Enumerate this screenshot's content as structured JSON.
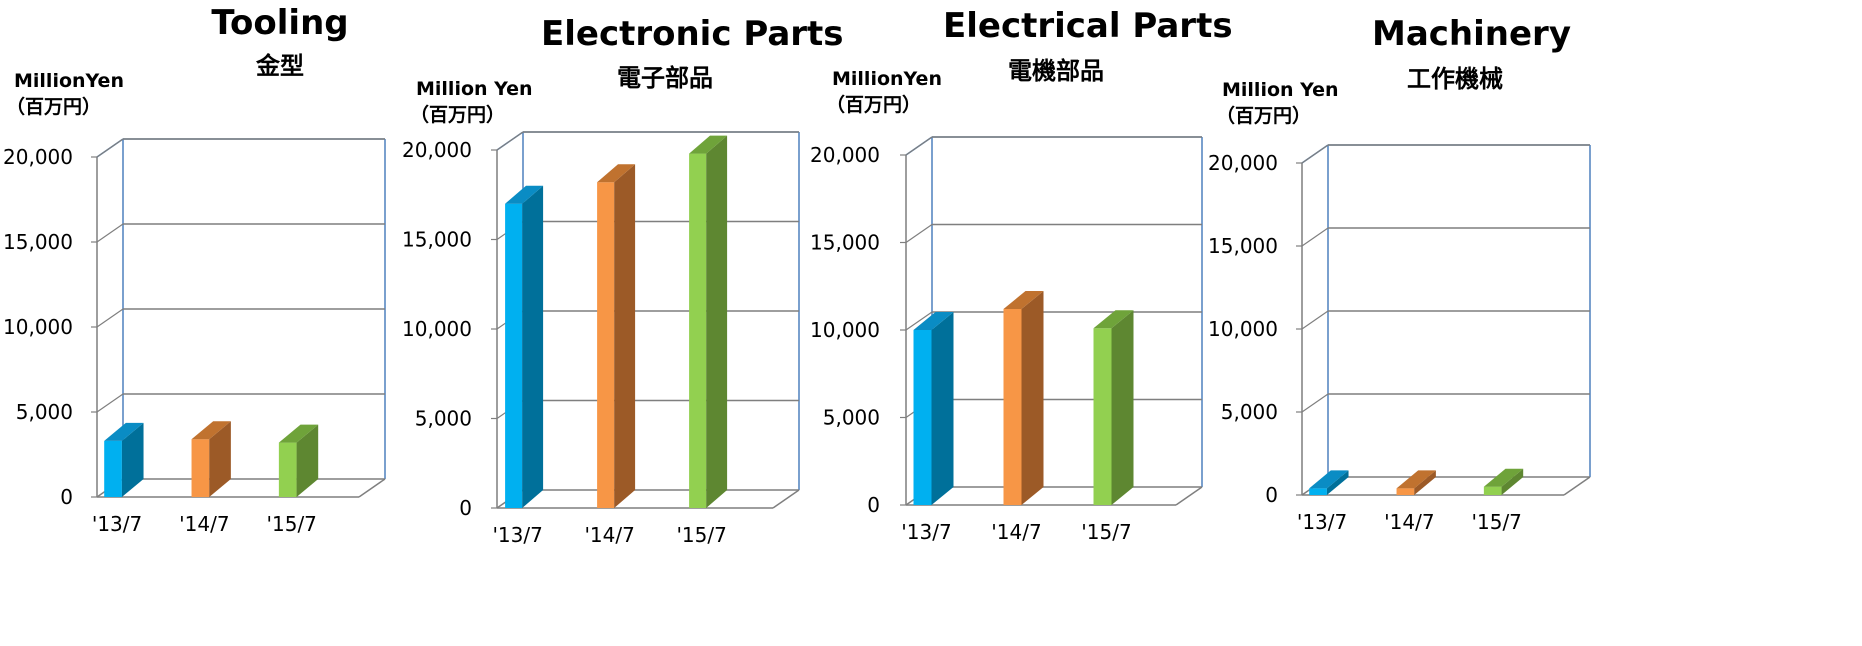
{
  "series_colors": [
    {
      "front": "#00B0F0",
      "side": "#00709A",
      "top": "#0A8CC4"
    },
    {
      "front": "#F79646",
      "side": "#9C5A27",
      "top": "#C0722F"
    },
    {
      "front": "#92D050",
      "side": "#5E8731",
      "top": "#6FA33A"
    }
  ],
  "frame_color": "#4F81BD",
  "chart_data": [
    {
      "type": "bar",
      "title": "Tooling",
      "subtitle": "金型",
      "unit_line1": "MillionYen",
      "unit_line2": "（百万円）",
      "categories": [
        "'13/7",
        "'14/7",
        "'15/7"
      ],
      "values": [
        3300,
        3400,
        3200
      ],
      "ylim": [
        0,
        20000
      ],
      "yticks": [
        "0",
        "5,000",
        "10,000",
        "15,000",
        "20,000"
      ],
      "grid": true
    },
    {
      "type": "bar",
      "title": "Electronic Parts",
      "subtitle": "電子部品",
      "unit_line1": "Million Yen",
      "unit_line2": "（百万円）",
      "categories": [
        "'13/7",
        "'14/7",
        "'15/7"
      ],
      "values": [
        17000,
        18200,
        19800
      ],
      "ylim": [
        0,
        20000
      ],
      "yticks": [
        "0",
        "5,000",
        "10,000",
        "15,000",
        "20,000"
      ],
      "grid": true
    },
    {
      "type": "bar",
      "title": "Electrical Parts",
      "subtitle": "電機部品",
      "unit_line1": "MillionYen",
      "unit_line2": "（百万円）",
      "categories": [
        "'13/7",
        "'14/7",
        "'15/7"
      ],
      "values": [
        10000,
        11200,
        10100
      ],
      "ylim": [
        0,
        20000
      ],
      "yticks": [
        "0",
        "5,000",
        "10,000",
        "15,000",
        "20,000"
      ],
      "grid": true
    },
    {
      "type": "bar",
      "title": "Machinery",
      "subtitle": "工作機械",
      "unit_line1": "Million Yen",
      "unit_line2": "（百万円）",
      "categories": [
        "'13/7",
        "'14/7",
        "'15/7"
      ],
      "values": [
        400,
        400,
        500
      ],
      "ylim": [
        0,
        20000
      ],
      "yticks": [
        "0",
        "5,000",
        "10,000",
        "15,000",
        "20,000"
      ],
      "grid": true
    }
  ]
}
